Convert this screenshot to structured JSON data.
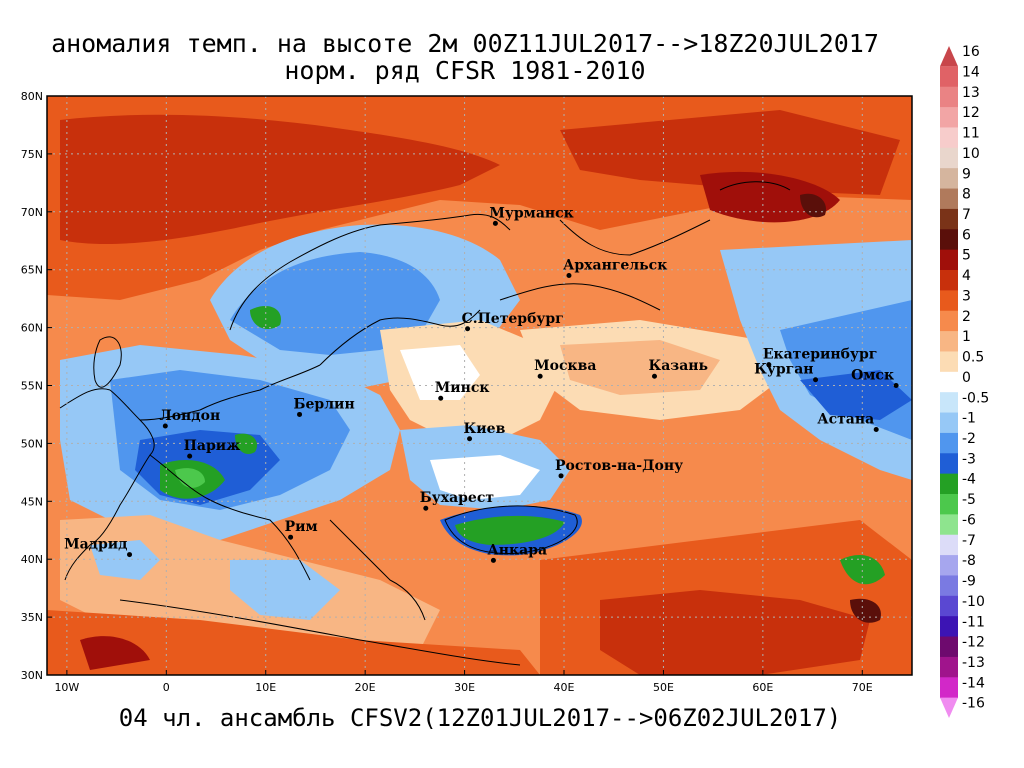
{
  "title_line1": "аномалия темп. на высоте 2м 00Z11JUL2017-->18Z20JUL2017",
  "title_line2": "норм. ряд CFSR 1981-2010",
  "footer": "04 чл. ансамбль CFSV2(12Z01JUL2017-->06Z02JUL2017)",
  "lat_labels": [
    "80N",
    "75N",
    "70N",
    "65N",
    "60N",
    "55N",
    "50N",
    "45N",
    "40N",
    "35N",
    "30N"
  ],
  "lon_labels": [
    "10W",
    "0",
    "10E",
    "20E",
    "30E",
    "40E",
    "50E",
    "60E",
    "70E"
  ],
  "cities": [
    {
      "name": "Мурманск",
      "lon": 33.1,
      "lat": 69.0
    },
    {
      "name": "Архангельск",
      "lon": 40.5,
      "lat": 64.5
    },
    {
      "name": "С.Петербург",
      "lon": 30.3,
      "lat": 59.9
    },
    {
      "name": "Москва",
      "lon": 37.6,
      "lat": 55.8
    },
    {
      "name": "Казань",
      "lon": 49.1,
      "lat": 55.8
    },
    {
      "name": "Екатеринбург",
      "lon": 60.6,
      "lat": 56.8
    },
    {
      "name": "Курган",
      "lon": 65.3,
      "lat": 55.5
    },
    {
      "name": "Омск",
      "lon": 73.4,
      "lat": 55.0
    },
    {
      "name": "Астана",
      "lon": 71.4,
      "lat": 51.2
    },
    {
      "name": "Минск",
      "lon": 27.6,
      "lat": 53.9
    },
    {
      "name": "Киев",
      "lon": 30.5,
      "lat": 50.4
    },
    {
      "name": "Ростов-на-Дону",
      "lon": 39.7,
      "lat": 47.2
    },
    {
      "name": "Берлин",
      "lon": 13.4,
      "lat": 52.5
    },
    {
      "name": "Лондон",
      "lon": -0.1,
      "lat": 51.5
    },
    {
      "name": "Париж",
      "lon": 2.35,
      "lat": 48.9
    },
    {
      "name": "Бухарест",
      "lon": 26.1,
      "lat": 44.4
    },
    {
      "name": "Рим",
      "lon": 12.5,
      "lat": 41.9
    },
    {
      "name": "Мадрид",
      "lon": -3.7,
      "lat": 40.4
    },
    {
      "name": "Анкара",
      "lon": 32.9,
      "lat": 39.9
    }
  ],
  "colorbar": [
    {
      "label": "16",
      "color": "#c8464b"
    },
    {
      "label": "14",
      "color": "#e06266"
    },
    {
      "label": "13",
      "color": "#ea8384"
    },
    {
      "label": "12",
      "color": "#f2a5a5"
    },
    {
      "label": "11",
      "color": "#f7cccb"
    },
    {
      "label": "10",
      "color": "#e9d6cc"
    },
    {
      "label": "9",
      "color": "#d5b59e"
    },
    {
      "label": "8",
      "color": "#b07a5c"
    },
    {
      "label": "7",
      "color": "#7a3318"
    },
    {
      "label": "6",
      "color": "#5a0f0a"
    },
    {
      "label": "5",
      "color": "#a00f0a"
    },
    {
      "label": "4",
      "color": "#c8300c"
    },
    {
      "label": "3",
      "color": "#e85a1c"
    },
    {
      "label": "2",
      "color": "#f68a4c"
    },
    {
      "label": "1",
      "color": "#f8b684"
    },
    {
      "label": "0.5",
      "color": "#fcdcb4"
    },
    {
      "label": "0",
      "color": "#ffffff"
    },
    {
      "label": "-0.5",
      "color": "#c8e6fa"
    },
    {
      "label": "-1",
      "color": "#96c8f6"
    },
    {
      "label": "-2",
      "color": "#5096ee"
    },
    {
      "label": "-3",
      "color": "#1f5ed6"
    },
    {
      "label": "-4",
      "color": "#24a024"
    },
    {
      "label": "-5",
      "color": "#4cc84c"
    },
    {
      "label": "-6",
      "color": "#8ee48e"
    },
    {
      "label": "-7",
      "color": "#dcdcf8"
    },
    {
      "label": "-8",
      "color": "#a6a6ee"
    },
    {
      "label": "-9",
      "color": "#7a7ae2"
    },
    {
      "label": "-10",
      "color": "#5a48d2"
    },
    {
      "label": "-11",
      "color": "#3c14b4"
    },
    {
      "label": "-12",
      "color": "#6e0a6e"
    },
    {
      "label": "-13",
      "color": "#a0148c"
    },
    {
      "label": "-14",
      "color": "#d228c8"
    },
    {
      "label": "-16",
      "color": "#f08cf0"
    }
  ]
}
